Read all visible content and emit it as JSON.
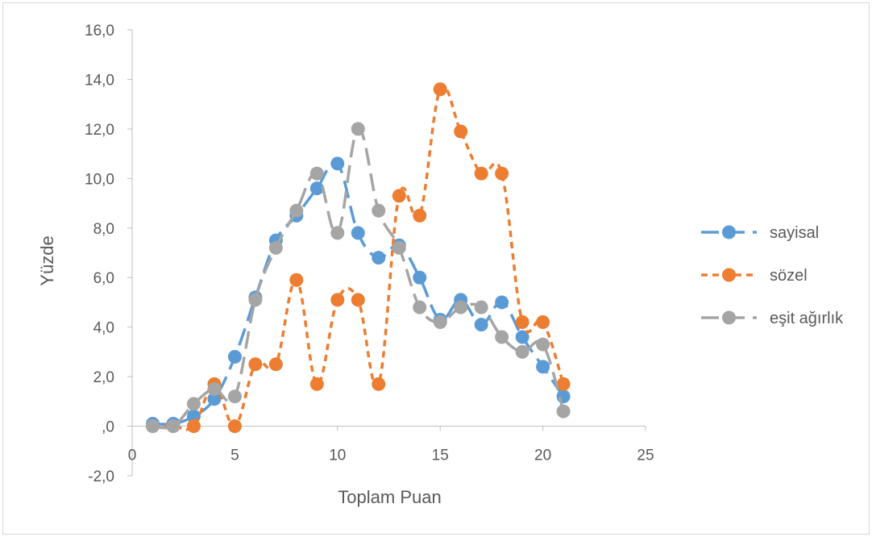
{
  "chart_data": {
    "type": "line",
    "title": "",
    "xlabel": "Toplam Puan",
    "ylabel": "Yüzde",
    "xlim": [
      0,
      25
    ],
    "ylim": [
      -2,
      16
    ],
    "x_ticks": [
      0,
      5,
      10,
      15,
      20,
      25
    ],
    "x_tick_labels": [
      "0",
      "5",
      "10",
      "15",
      "20",
      "25"
    ],
    "y_ticks": [
      -2,
      0,
      2,
      4,
      6,
      8,
      10,
      12,
      14,
      16
    ],
    "y_tick_labels": [
      "-2,0",
      ",0",
      "2,0",
      "4,0",
      "6,0",
      "8,0",
      "10,0",
      "12,0",
      "14,0",
      "16,0"
    ],
    "grid": false,
    "legend_position": "right",
    "x": [
      1,
      2,
      3,
      4,
      5,
      6,
      7,
      8,
      9,
      10,
      11,
      12,
      13,
      14,
      15,
      16,
      17,
      18,
      19,
      20,
      21
    ],
    "series": [
      {
        "name": "sayisal",
        "color": "#5b9bd5",
        "dash": "long-dash",
        "values": [
          0.1,
          0.1,
          0.4,
          1.1,
          2.8,
          5.2,
          7.5,
          8.5,
          9.6,
          10.6,
          7.8,
          6.8,
          7.3,
          6.0,
          4.3,
          5.1,
          4.1,
          5.0,
          3.6,
          2.4,
          1.2
        ]
      },
      {
        "name": "sözel",
        "color": "#ed7d31",
        "dash": "short-dash",
        "values": [
          0.0,
          0.0,
          0.0,
          1.7,
          0.0,
          2.5,
          2.5,
          5.9,
          1.7,
          5.1,
          5.1,
          1.7,
          9.3,
          8.5,
          13.6,
          11.9,
          10.2,
          10.2,
          4.2,
          4.2,
          1.7
        ]
      },
      {
        "name": "eşit ağırlık",
        "color": "#a5a5a5",
        "dash": "long-dash",
        "values": [
          0.0,
          0.0,
          0.9,
          1.5,
          1.2,
          5.1,
          7.2,
          8.7,
          10.2,
          7.8,
          12.0,
          8.7,
          7.2,
          4.8,
          4.2,
          4.8,
          4.8,
          3.6,
          3.0,
          3.3,
          0.6
        ]
      }
    ]
  }
}
